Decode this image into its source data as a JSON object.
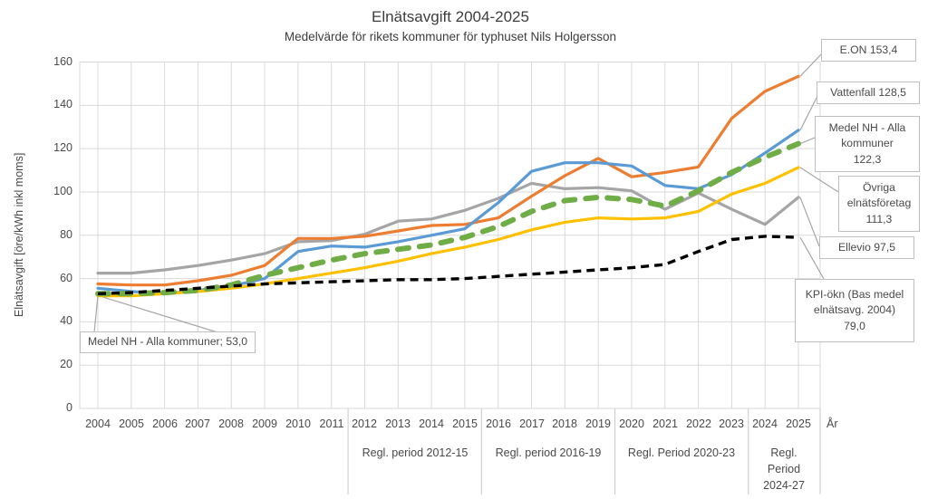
{
  "title": "Elnätsavgift 2004-2025",
  "subtitle": "Medelvärde för rikets kommuner för typhuset Nils Holgersson",
  "chart_data": {
    "type": "line",
    "title": "Elnätsavgift 2004-2025",
    "subtitle": "Medelvärde för rikets kommuner för typhuset Nils Holgersson",
    "xlabel": "År",
    "ylabel": "Elnätsavgift [öre/kWh inkl moms]",
    "ylim": [
      0,
      160
    ],
    "ytick_step": 20,
    "yticks": [
      "0",
      "20",
      "40",
      "60",
      "80",
      "100",
      "120",
      "140",
      "160"
    ],
    "grid": true,
    "legend_position": "right-callouts",
    "x": [
      2004,
      2005,
      2006,
      2007,
      2008,
      2009,
      2010,
      2011,
      2012,
      2013,
      2014,
      2015,
      2016,
      2017,
      2018,
      2019,
      2020,
      2021,
      2022,
      2023,
      2024,
      2025
    ],
    "series": [
      {
        "name": "E.ON",
        "color": "#ED7D31",
        "style": "solid",
        "final_value": 153.4,
        "callout": "E.ON 153,4",
        "values": [
          57.5,
          57,
          57,
          59,
          61.5,
          66,
          78.5,
          78.5,
          79.5,
          82,
          84.5,
          85,
          88,
          98,
          107.5,
          115.5,
          107,
          109,
          111.5,
          134,
          146.5,
          153.4
        ]
      },
      {
        "name": "Vattenfall",
        "color": "#5B9BD5",
        "style": "solid",
        "final_value": 128.5,
        "callout": "Vattenfall 128,5",
        "values": [
          55.5,
          54,
          53,
          54.5,
          56.5,
          60,
          72.5,
          75,
          74.5,
          77,
          80,
          83,
          95,
          109.5,
          113.5,
          113.5,
          112,
          103,
          101.5,
          108,
          118,
          128.5
        ]
      },
      {
        "name": "Medel NH - Alla kommuner",
        "color": "#70AD47",
        "style": "dashed-bold",
        "final_value": 122.3,
        "callout": "Medel NH - Alla\nkommuner\n122,3",
        "values": [
          53,
          53,
          53.5,
          54.5,
          57,
          61.5,
          65,
          68.5,
          71.5,
          73.5,
          75.5,
          79,
          84,
          91,
          96,
          97.5,
          96.5,
          93.5,
          100.5,
          109,
          116,
          122.3
        ]
      },
      {
        "name": "Övriga elnätsföretag",
        "color": "#FFC000",
        "style": "solid",
        "final_value": 111.3,
        "callout": "Övriga\nelnätsföretag\n111,3",
        "values": [
          52,
          52,
          53,
          54,
          55.5,
          57.5,
          60,
          62.5,
          65,
          68,
          71.5,
          74.5,
          78,
          82.5,
          86,
          88,
          87.5,
          88,
          91,
          99,
          104,
          111.3
        ]
      },
      {
        "name": "Ellevio",
        "color": "#A5A5A5",
        "style": "solid",
        "final_value": 97.5,
        "callout": "Ellevio 97,5",
        "values": [
          62.5,
          62.5,
          64,
          66,
          68.5,
          71.5,
          77,
          77.5,
          80.5,
          86.5,
          87.5,
          91.5,
          97,
          104,
          101.5,
          102,
          100.5,
          92,
          99.5,
          92,
          85,
          97.5
        ]
      },
      {
        "name": "KPI-ökn (Bas medel elnätsavg. 2004)",
        "color": "#000000",
        "style": "dashed",
        "final_value": 79.0,
        "callout": "KPI-ökn (Bas medel\nelnätsavg. 2004)\n79,0",
        "values": [
          53,
          53.5,
          54.5,
          55.5,
          56.5,
          57.5,
          58,
          58.5,
          59,
          59.5,
          59.5,
          60,
          61,
          62,
          63,
          64,
          65,
          66.5,
          72.5,
          78,
          79.5,
          79
        ]
      }
    ],
    "annotation": "Medel NH - Alla kommuner; 53,0",
    "period_labels": [
      "Regl. period 2012-15",
      "Regl. period 2016-19",
      "Regl. Period 2020-23",
      "Regl.\nPeriod\n2024-27"
    ]
  }
}
